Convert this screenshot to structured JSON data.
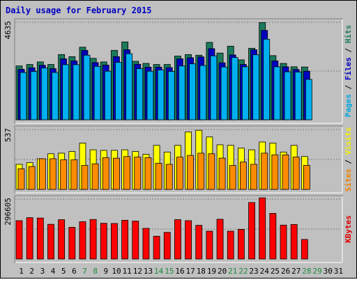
{
  "chart_data": {
    "type": "bar",
    "title": "Daily usage for February 2015",
    "x": [
      "1",
      "2",
      "3",
      "4",
      "5",
      "6",
      "7",
      "8",
      "9",
      "10",
      "11",
      "12",
      "13",
      "14",
      "15",
      "16",
      "17",
      "18",
      "19",
      "20",
      "21",
      "22",
      "23",
      "24",
      "25",
      "26",
      "27",
      "28",
      "29",
      "30",
      "31"
    ],
    "weekend_days": [
      "7",
      "8",
      "14",
      "15",
      "21",
      "22",
      "28",
      "29"
    ],
    "panels": [
      {
        "id": "hits-files-pages",
        "ymax_label": "4635",
        "ymax": 4635,
        "side_labels": [
          {
            "text": "Pages",
            "color": "#00a8e0"
          },
          {
            "text": " / ",
            "color": "#000000"
          },
          {
            "text": "Files",
            "color": "#0000c0"
          },
          {
            "text": " / ",
            "color": "#000000"
          },
          {
            "text": "Hits",
            "color": "#1b7a5c"
          }
        ],
        "series": [
          {
            "name": "Hits",
            "color": "#1b7a5c",
            "values": [
              2560,
              2630,
              2750,
              2630,
              3100,
              3000,
              3450,
              2920,
              2750,
              3300,
              3700,
              2780,
              2680,
              2630,
              2630,
              3030,
              3100,
              3070,
              3680,
              3170,
              3500,
              2850,
              3400,
              4620,
              3050,
              2680,
              2520,
              2510
            ]
          },
          {
            "name": "Files",
            "color": "#0000c0",
            "values": [
              2400,
              2470,
              2590,
              2430,
              2900,
              2800,
              3300,
              2720,
              2600,
              3000,
              3330,
              2640,
              2500,
              2500,
              2480,
              2900,
              2950,
              2990,
              3380,
              2710,
              3080,
              2630,
              3330,
              4250,
              2800,
              2520,
              2390,
              2310
            ]
          },
          {
            "name": "Pages",
            "color": "#00b0f0",
            "values": [
              2250,
              2300,
              2460,
              2250,
              2620,
              2620,
              3070,
              2540,
              2310,
              2730,
              3140,
              2430,
              2310,
              2370,
              2300,
              2560,
              2660,
              2580,
              3040,
              2510,
              2960,
              2520,
              3090,
              3830,
              2520,
              2280,
              2270,
              1920
            ]
          }
        ]
      },
      {
        "id": "visits-sites",
        "ymax_label": "537",
        "ymax": 537,
        "side_labels": [
          {
            "text": "Sites",
            "color": "#f08000"
          },
          {
            "text": " / ",
            "color": "#000000"
          },
          {
            "text": "Visits",
            "color": "#f0f000"
          }
        ],
        "series": [
          {
            "name": "Visits",
            "color": "#ffff00",
            "values": [
              225,
              240,
              275,
              320,
              325,
              340,
              415,
              355,
              350,
              350,
              355,
              340,
              315,
              395,
              335,
              395,
              515,
              530,
              470,
              400,
              395,
              370,
              355,
              425,
              415,
              335,
              395,
              295
            ]
          },
          {
            "name": "Sites",
            "color": "#ff8c00",
            "values": [
              185,
              205,
              275,
              275,
              265,
              265,
              215,
              230,
              285,
              280,
              295,
              290,
              285,
              235,
              225,
              290,
              305,
              325,
              320,
              280,
              215,
              245,
              225,
              325,
              310,
              310,
              290,
              215
            ]
          }
        ]
      },
      {
        "id": "kbytes",
        "ymax_label": "296605",
        "ymax": 296605,
        "side_labels": [
          {
            "text": "KBytes",
            "color": "#e00000"
          }
        ],
        "series": [
          {
            "name": "KBytes",
            "color": "#ff0000",
            "values": [
              190000,
              205000,
              203000,
              172000,
              195000,
              157000,
              185000,
              196000,
              177000,
              176000,
              192000,
              188000,
              152000,
              113000,
              132000,
              195000,
              190000,
              167000,
              138000,
              197000,
              138000,
              147000,
              280000,
              303000,
              226000,
              168000,
              171000,
              97000
            ]
          }
        ]
      }
    ]
  }
}
